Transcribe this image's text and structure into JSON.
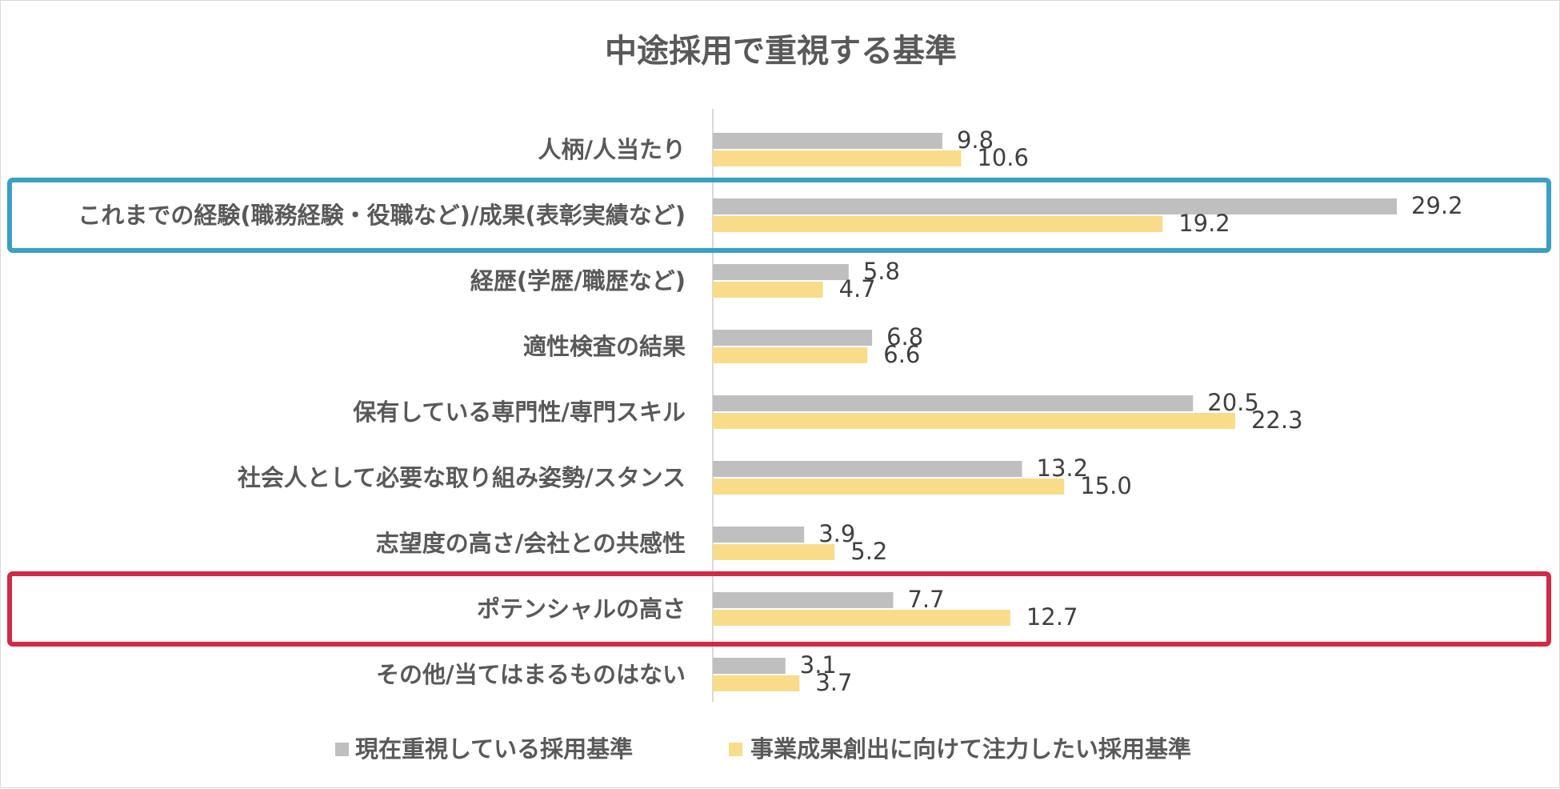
{
  "chart_data": {
    "type": "bar",
    "orientation": "horizontal",
    "title": "中途採用で重視する基準",
    "categories": [
      "人柄/人当たり",
      "これまでの経験(職務経験・役職など)/成果(表彰実績など)",
      "経歴(学歴/職歴など)",
      "適性検査の結果",
      "保有している専門性/専門スキル",
      "社会人として必要な取り組み姿勢/スタンス",
      "志望度の高さ/会社との共感性",
      "ポテンシャルの高さ",
      "その他/当てはまるものはない"
    ],
    "series": [
      {
        "name": "現在重視している採用基準",
        "color": "#bfbfbf",
        "values": [
          9.8,
          29.2,
          5.8,
          6.8,
          20.5,
          13.2,
          3.9,
          7.7,
          3.1
        ],
        "labels": [
          "9.8",
          "29.2",
          "5.8",
          "6.8",
          "20.5",
          "13.2",
          "3.9",
          "7.7",
          "3.1"
        ]
      },
      {
        "name": "事業成果創出に向けて注力したい採用基準",
        "color": "#f9dc8a",
        "values": [
          10.6,
          19.2,
          4.7,
          6.6,
          22.3,
          15.0,
          5.2,
          12.7,
          3.7
        ],
        "labels": [
          "10.6",
          "19.2",
          "4.7",
          "6.6",
          "22.3",
          "15.0",
          "5.2",
          "12.7",
          "3.7"
        ]
      }
    ],
    "xlim": [
      0,
      32
    ],
    "grid": false,
    "legend_position": "bottom",
    "highlights": [
      {
        "category_index": 1,
        "color": "#3a9fc4"
      },
      {
        "category_index": 7,
        "color": "#d12a46"
      }
    ]
  }
}
